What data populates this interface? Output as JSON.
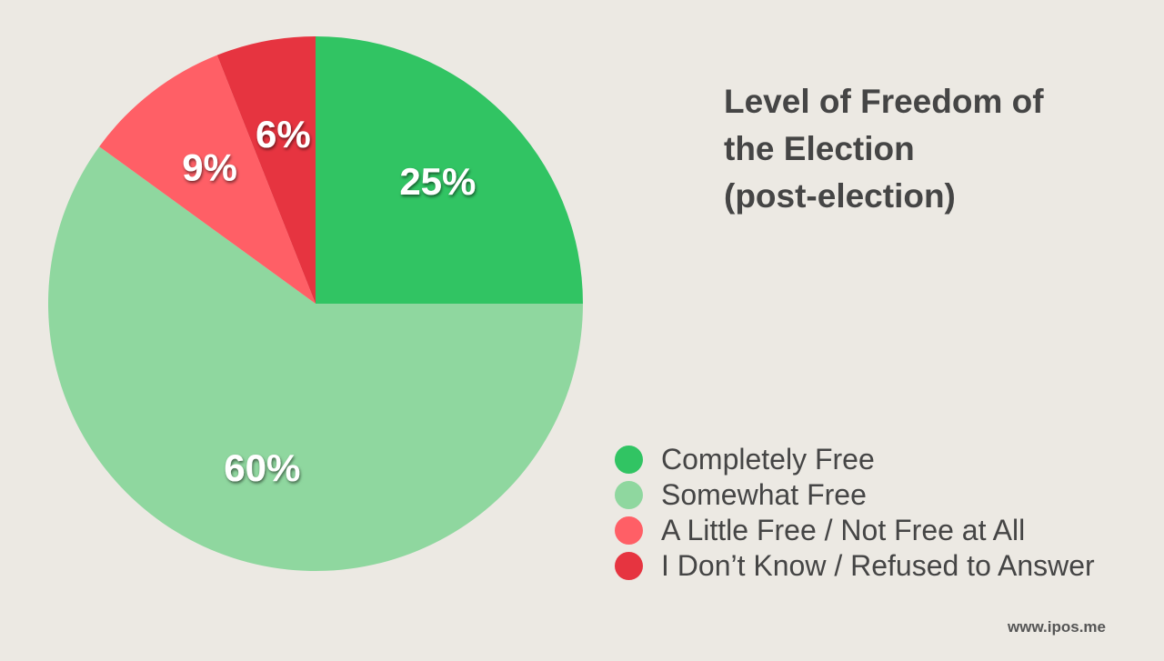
{
  "chart_data": {
    "type": "pie",
    "title": [
      "Level of Freedom of",
      "the Election",
      "(post-election)"
    ],
    "slices": [
      {
        "label": "Completely Free",
        "value": 25,
        "display": "25%",
        "color": "#31C463"
      },
      {
        "label": "Somewhat Free",
        "value": 60,
        "display": "60%",
        "color": "#8FD79F"
      },
      {
        "label": "A Little Free / Not Free at All",
        "value": 9,
        "display": "9%",
        "color": "#FF5F66"
      },
      {
        "label": "I Don’t Know / Refused to Answer",
        "value": 6,
        "display": "6%",
        "color": "#E63440"
      }
    ],
    "legend_position": "bottom-right"
  },
  "source": "www.ipos.me",
  "colors": {
    "background": "#ECE9E3",
    "text": "#454545",
    "label": "#FFFFFF"
  }
}
